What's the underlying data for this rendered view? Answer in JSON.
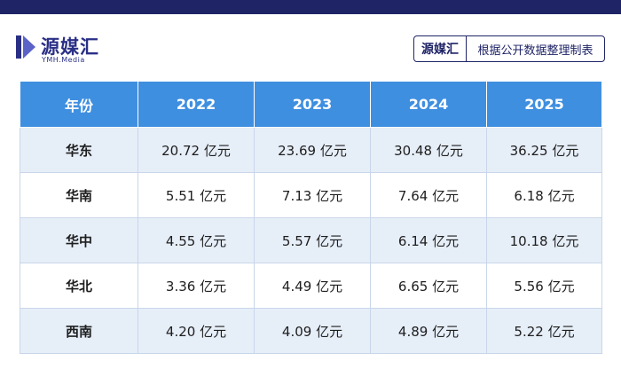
{
  "header": {
    "brand_cn": "源媒汇",
    "brand_en": "YMH.Media",
    "source_brand": "源媒汇",
    "source_text": "根据公开数据整理制表",
    "bar_color": "#1f2466",
    "logo_color": "#2a2f86"
  },
  "table": {
    "header_color": "#3f8fe0",
    "stripe_color": "#e6eef8",
    "columns": [
      "年份",
      "2022",
      "2023",
      "2024",
      "2025"
    ],
    "rows": [
      {
        "region": "华东",
        "values": [
          "20.72 亿元",
          "23.69 亿元",
          "30.48 亿元",
          "36.25 亿元"
        ]
      },
      {
        "region": "华南",
        "values": [
          "5.51 亿元",
          "7.13 亿元",
          "7.64 亿元",
          "6.18 亿元"
        ]
      },
      {
        "region": "华中",
        "values": [
          "4.55 亿元",
          "5.57 亿元",
          "6.14 亿元",
          "10.18 亿元"
        ]
      },
      {
        "region": "华北",
        "values": [
          "3.36 亿元",
          "4.49 亿元",
          "6.65 亿元",
          "5.56 亿元"
        ]
      },
      {
        "region": "西南",
        "values": [
          "4.20 亿元",
          "4.09 亿元",
          "4.89 亿元",
          "5.22 亿元"
        ]
      }
    ]
  }
}
